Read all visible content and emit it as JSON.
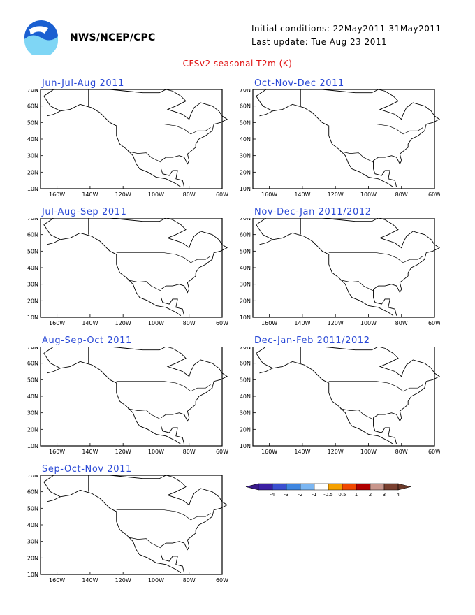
{
  "header": {
    "org": "NWS/NCEP/CPC",
    "initial_conditions": "Initial conditions: 22May2011-31May2011",
    "last_update": "Last update: Tue Aug 23 2011",
    "title": "CFSv2 seasonal T2m (K)"
  },
  "axes": {
    "lat_labels": [
      "70N",
      "60N",
      "50N",
      "40N",
      "30N",
      "20N",
      "10N"
    ],
    "lon_labels": [
      "160W",
      "140W",
      "120W",
      "100W",
      "80W",
      "60W"
    ]
  },
  "panels": [
    {
      "title": "Jun-Jul-Aug 2011"
    },
    {
      "title": "Oct-Nov-Dec 2011"
    },
    {
      "title": "Jul-Aug-Sep 2011"
    },
    {
      "title": "Nov-Dec-Jan 2011/2012"
    },
    {
      "title": "Aug-Sep-Oct 2011"
    },
    {
      "title": "Dec-Jan-Feb 2011/2012"
    },
    {
      "title": "Sep-Oct-Nov 2011"
    }
  ],
  "colorbar": {
    "labels": [
      "-4",
      "-3",
      "-2",
      "-1",
      "-0.5",
      "0.5",
      "1",
      "2",
      "3",
      "4"
    ],
    "colors": [
      "#3b1fa3",
      "#3b4fd0",
      "#3f86e0",
      "#7bb6f2",
      "#ffffff",
      "#f5a000",
      "#f04800",
      "#b00000",
      "#c8968c",
      "#7a4030"
    ],
    "end_low": "#3a1a8a",
    "end_high": "#6b3a2a"
  },
  "colors": {
    "title_red": "#e01010",
    "panel_title_blue": "#2a49d6"
  }
}
